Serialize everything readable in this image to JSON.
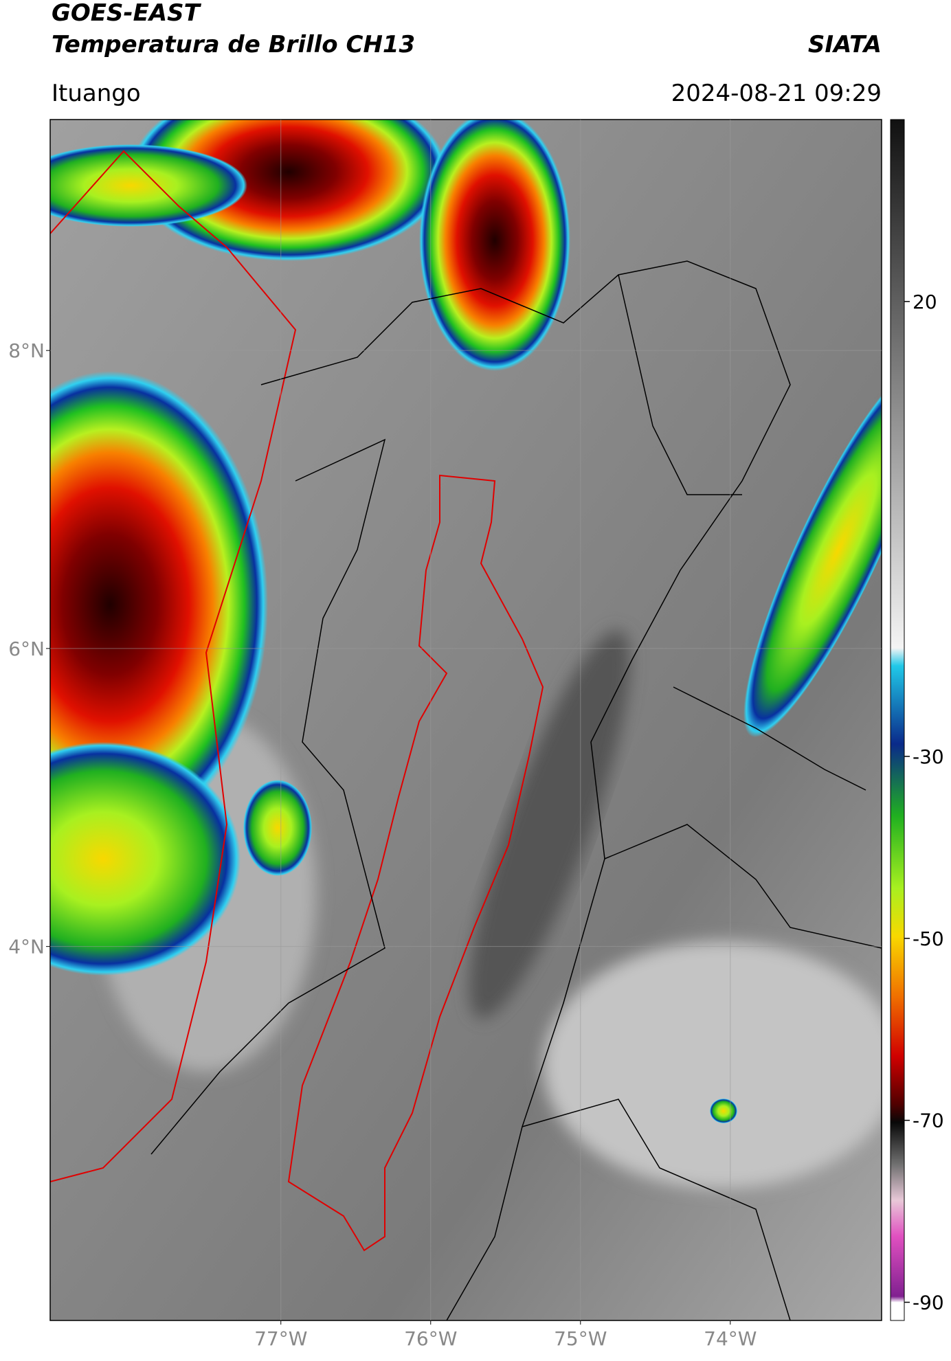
{
  "header": {
    "title_line1": "GOES-EAST",
    "title_line2": "Temperatura de Brillo CH13",
    "agency": "SIATA",
    "region": "Ituango",
    "timestamp": "2024-08-21 09:29"
  },
  "map": {
    "xlim": [
      -78.54,
      -72.99
    ],
    "ylim": [
      1.49,
      9.55
    ],
    "xticks": [
      {
        "value": -77,
        "label": "77°W"
      },
      {
        "value": -76,
        "label": "76°W"
      },
      {
        "value": -75,
        "label": "75°W"
      },
      {
        "value": -74,
        "label": "74°W"
      }
    ],
    "yticks": [
      {
        "value": 8,
        "label": "8°N"
      },
      {
        "value": 6,
        "label": "6°N"
      },
      {
        "value": 4,
        "label": "4°N"
      }
    ],
    "grid": true
  },
  "colorbar": {
    "lim": [
      -92,
      40
    ],
    "ticks": [
      20,
      -30,
      -50,
      -70,
      -90
    ]
  }
}
